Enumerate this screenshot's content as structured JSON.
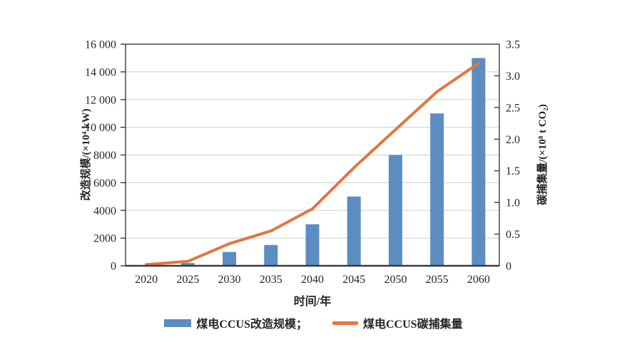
{
  "chart_data": {
    "type": "bar",
    "subtype": "combo-bar-line-dual-axis",
    "title": "",
    "categories": [
      "2020",
      "2025",
      "2030",
      "2035",
      "2040",
      "2045",
      "2050",
      "2055",
      "2060"
    ],
    "series": [
      {
        "name": "煤电CCUS改造规模",
        "type": "bar",
        "y_axis": "left",
        "values": [
          0,
          200,
          1000,
          1500,
          3000,
          5000,
          8000,
          11000,
          15000
        ]
      },
      {
        "name": "煤电CCUS碳捕集量",
        "type": "line",
        "y_axis": "right",
        "values": [
          0.02,
          0.07,
          0.35,
          0.55,
          0.9,
          1.55,
          2.15,
          2.75,
          3.2
        ]
      }
    ],
    "xlabel": "时间/年",
    "ylabel_left": "改造规模/(×10⁴ kW)",
    "ylabel_right": "碳捕集量/(×10⁸ t CO₂)",
    "left_axis": {
      "min": 0,
      "max": 16000,
      "step": 2000,
      "tick_labels": [
        "0",
        "2000",
        "4000",
        "6000",
        "8000",
        "10 000",
        "12 000",
        "14 000",
        "16 000"
      ]
    },
    "right_axis": {
      "min": 0,
      "max": 3.5,
      "step": 0.5,
      "tick_labels": [
        "0",
        "0.5",
        "1.0",
        "1.5",
        "2.0",
        "2.5",
        "3.0",
        "3.5"
      ]
    },
    "grid": true,
    "legend": {
      "position": "bottom",
      "entries": [
        "煤电CCUS改造规模；",
        "煤电CCUS碳捕集量"
      ]
    },
    "colors": {
      "bar": "#5B8DC3",
      "line": "#E2773E",
      "grid": "#CFCFCF",
      "axis": "#3A3A3A",
      "text": "#262626"
    }
  }
}
